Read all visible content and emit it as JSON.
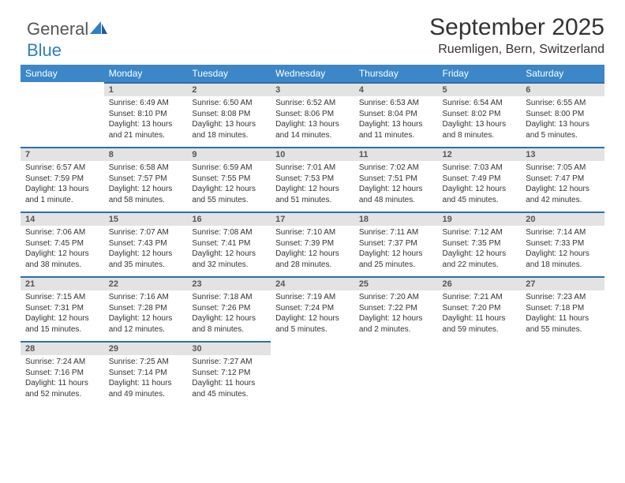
{
  "brand": {
    "name1": "General",
    "name2": "Blue"
  },
  "title": "September 2025",
  "location": "Ruemligen, Bern, Switzerland",
  "colors": {
    "header_bg": "#3b87c8",
    "header_text": "#ffffff",
    "daybar_bg": "#e3e3e3",
    "daybar_border": "#2f6fa8",
    "body_bg": "#ffffff",
    "text": "#333333"
  },
  "fonts": {
    "title_size": 30,
    "location_size": 16,
    "header_size": 12,
    "daynum_size": 11,
    "body_size": 10
  },
  "weekdays": [
    "Sunday",
    "Monday",
    "Tuesday",
    "Wednesday",
    "Thursday",
    "Friday",
    "Saturday"
  ],
  "weeks": [
    [
      null,
      {
        "n": "1",
        "sunrise": "6:49 AM",
        "sunset": "8:10 PM",
        "daylight": "13 hours and 21 minutes."
      },
      {
        "n": "2",
        "sunrise": "6:50 AM",
        "sunset": "8:08 PM",
        "daylight": "13 hours and 18 minutes."
      },
      {
        "n": "3",
        "sunrise": "6:52 AM",
        "sunset": "8:06 PM",
        "daylight": "13 hours and 14 minutes."
      },
      {
        "n": "4",
        "sunrise": "6:53 AM",
        "sunset": "8:04 PM",
        "daylight": "13 hours and 11 minutes."
      },
      {
        "n": "5",
        "sunrise": "6:54 AM",
        "sunset": "8:02 PM",
        "daylight": "13 hours and 8 minutes."
      },
      {
        "n": "6",
        "sunrise": "6:55 AM",
        "sunset": "8:00 PM",
        "daylight": "13 hours and 5 minutes."
      }
    ],
    [
      {
        "n": "7",
        "sunrise": "6:57 AM",
        "sunset": "7:59 PM",
        "daylight": "13 hours and 1 minute."
      },
      {
        "n": "8",
        "sunrise": "6:58 AM",
        "sunset": "7:57 PM",
        "daylight": "12 hours and 58 minutes."
      },
      {
        "n": "9",
        "sunrise": "6:59 AM",
        "sunset": "7:55 PM",
        "daylight": "12 hours and 55 minutes."
      },
      {
        "n": "10",
        "sunrise": "7:01 AM",
        "sunset": "7:53 PM",
        "daylight": "12 hours and 51 minutes."
      },
      {
        "n": "11",
        "sunrise": "7:02 AM",
        "sunset": "7:51 PM",
        "daylight": "12 hours and 48 minutes."
      },
      {
        "n": "12",
        "sunrise": "7:03 AM",
        "sunset": "7:49 PM",
        "daylight": "12 hours and 45 minutes."
      },
      {
        "n": "13",
        "sunrise": "7:05 AM",
        "sunset": "7:47 PM",
        "daylight": "12 hours and 42 minutes."
      }
    ],
    [
      {
        "n": "14",
        "sunrise": "7:06 AM",
        "sunset": "7:45 PM",
        "daylight": "12 hours and 38 minutes."
      },
      {
        "n": "15",
        "sunrise": "7:07 AM",
        "sunset": "7:43 PM",
        "daylight": "12 hours and 35 minutes."
      },
      {
        "n": "16",
        "sunrise": "7:08 AM",
        "sunset": "7:41 PM",
        "daylight": "12 hours and 32 minutes."
      },
      {
        "n": "17",
        "sunrise": "7:10 AM",
        "sunset": "7:39 PM",
        "daylight": "12 hours and 28 minutes."
      },
      {
        "n": "18",
        "sunrise": "7:11 AM",
        "sunset": "7:37 PM",
        "daylight": "12 hours and 25 minutes."
      },
      {
        "n": "19",
        "sunrise": "7:12 AM",
        "sunset": "7:35 PM",
        "daylight": "12 hours and 22 minutes."
      },
      {
        "n": "20",
        "sunrise": "7:14 AM",
        "sunset": "7:33 PM",
        "daylight": "12 hours and 18 minutes."
      }
    ],
    [
      {
        "n": "21",
        "sunrise": "7:15 AM",
        "sunset": "7:31 PM",
        "daylight": "12 hours and 15 minutes."
      },
      {
        "n": "22",
        "sunrise": "7:16 AM",
        "sunset": "7:28 PM",
        "daylight": "12 hours and 12 minutes."
      },
      {
        "n": "23",
        "sunrise": "7:18 AM",
        "sunset": "7:26 PM",
        "daylight": "12 hours and 8 minutes."
      },
      {
        "n": "24",
        "sunrise": "7:19 AM",
        "sunset": "7:24 PM",
        "daylight": "12 hours and 5 minutes."
      },
      {
        "n": "25",
        "sunrise": "7:20 AM",
        "sunset": "7:22 PM",
        "daylight": "12 hours and 2 minutes."
      },
      {
        "n": "26",
        "sunrise": "7:21 AM",
        "sunset": "7:20 PM",
        "daylight": "11 hours and 59 minutes."
      },
      {
        "n": "27",
        "sunrise": "7:23 AM",
        "sunset": "7:18 PM",
        "daylight": "11 hours and 55 minutes."
      }
    ],
    [
      {
        "n": "28",
        "sunrise": "7:24 AM",
        "sunset": "7:16 PM",
        "daylight": "11 hours and 52 minutes."
      },
      {
        "n": "29",
        "sunrise": "7:25 AM",
        "sunset": "7:14 PM",
        "daylight": "11 hours and 49 minutes."
      },
      {
        "n": "30",
        "sunrise": "7:27 AM",
        "sunset": "7:12 PM",
        "daylight": "11 hours and 45 minutes."
      },
      null,
      null,
      null,
      null
    ]
  ],
  "labels": {
    "sunrise": "Sunrise:",
    "sunset": "Sunset:",
    "daylight": "Daylight:"
  }
}
